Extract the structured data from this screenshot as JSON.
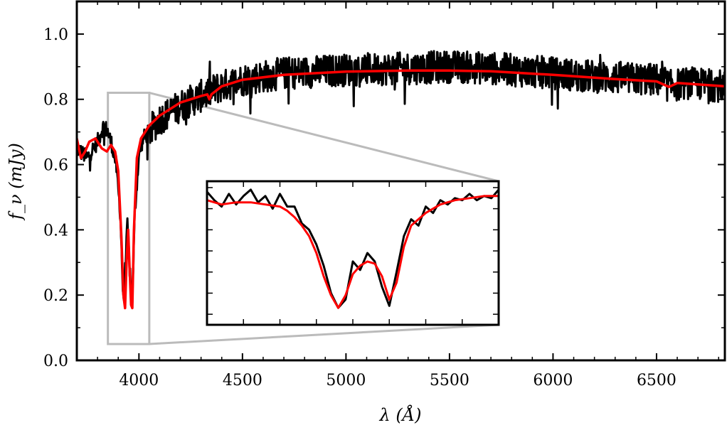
{
  "chart_data": {
    "type": "line",
    "xlabel": "λ (Å)",
    "ylabel": "f_ν (mJy)",
    "xlim": [
      3700,
      6830
    ],
    "ylim": [
      0.0,
      1.1
    ],
    "xticks": [
      4000,
      4500,
      5000,
      5500,
      6000,
      6500
    ],
    "xtick_labels": [
      "4000",
      "4500",
      "5000",
      "5500",
      "6000",
      "6500"
    ],
    "yticks": [
      0.0,
      0.2,
      0.4,
      0.6,
      0.8,
      1.0
    ],
    "ytick_labels": [
      "0.0",
      "0.2",
      "0.4",
      "0.6",
      "0.8",
      "1.0"
    ],
    "grid": false,
    "series": [
      {
        "color": "#000000",
        "style": "noisy observed spectrum",
        "x": [
          3700,
          3750,
          3800,
          3830,
          3850,
          3870,
          3890,
          3910,
          3925,
          3935,
          3945,
          3955,
          3968,
          3980,
          4000,
          4020,
          4050,
          4100,
          4200,
          4300,
          4400,
          4500,
          4700,
          5000,
          5300,
          5500,
          5700,
          6000,
          6300,
          6500,
          6563,
          6650,
          6830
        ],
        "y": [
          0.65,
          0.62,
          0.67,
          0.72,
          0.7,
          0.66,
          0.6,
          0.45,
          0.17,
          0.3,
          0.42,
          0.28,
          0.18,
          0.45,
          0.63,
          0.68,
          0.7,
          0.74,
          0.78,
          0.81,
          0.84,
          0.86,
          0.88,
          0.89,
          0.895,
          0.9,
          0.895,
          0.88,
          0.865,
          0.86,
          0.84,
          0.85,
          0.84
        ]
      },
      {
        "color": "#ff0000",
        "style": "model fit",
        "x": [
          3700,
          3720,
          3740,
          3760,
          3790,
          3820,
          3845,
          3865,
          3885,
          3900,
          3915,
          3925,
          3933,
          3940,
          3948,
          3955,
          3962,
          3968,
          3976,
          3990,
          4010,
          4050,
          4100,
          4200,
          4300,
          4330,
          4340,
          4350,
          4400,
          4500,
          4700,
          5000,
          5300,
          5500,
          5700,
          6000,
          6300,
          6500,
          6560,
          6600,
          6830
        ],
        "y": [
          0.68,
          0.62,
          0.64,
          0.67,
          0.68,
          0.65,
          0.64,
          0.66,
          0.64,
          0.58,
          0.38,
          0.2,
          0.16,
          0.3,
          0.4,
          0.28,
          0.17,
          0.16,
          0.4,
          0.62,
          0.68,
          0.72,
          0.75,
          0.79,
          0.81,
          0.815,
          0.8,
          0.815,
          0.84,
          0.86,
          0.875,
          0.885,
          0.888,
          0.888,
          0.886,
          0.875,
          0.862,
          0.855,
          0.838,
          0.85,
          0.84
        ]
      }
    ],
    "zoom_region": {
      "color": "#bbbbbb",
      "xlim": [
        3850,
        4050
      ],
      "ylim": [
        0.05,
        0.82
      ]
    },
    "inset": {
      "xlim": [
        3850,
        4050
      ],
      "ylim": [
        0.1,
        0.78
      ],
      "series": [
        {
          "color": "#000000",
          "x": [
            3850,
            3855,
            3860,
            3865,
            3870,
            3875,
            3880,
            3885,
            3890,
            3895,
            3900,
            3905,
            3910,
            3915,
            3920,
            3925,
            3930,
            3935,
            3940,
            3945,
            3950,
            3955,
            3960,
            3965,
            3970,
            3975,
            3980,
            3985,
            3990,
            3995,
            4000,
            4005,
            4010,
            4015,
            4020,
            4025,
            4030,
            4035,
            4040,
            4045,
            4050
          ],
          "y": [
            0.73,
            0.69,
            0.66,
            0.72,
            0.67,
            0.71,
            0.74,
            0.68,
            0.71,
            0.65,
            0.72,
            0.66,
            0.66,
            0.58,
            0.55,
            0.48,
            0.38,
            0.25,
            0.18,
            0.22,
            0.4,
            0.36,
            0.44,
            0.4,
            0.28,
            0.19,
            0.35,
            0.52,
            0.6,
            0.57,
            0.66,
            0.63,
            0.69,
            0.67,
            0.7,
            0.69,
            0.72,
            0.69,
            0.71,
            0.7,
            0.74
          ]
        },
        {
          "color": "#ff0000",
          "x": [
            3850,
            3855,
            3860,
            3870,
            3880,
            3890,
            3900,
            3905,
            3910,
            3915,
            3920,
            3925,
            3930,
            3935,
            3940,
            3945,
            3950,
            3955,
            3960,
            3965,
            3970,
            3975,
            3980,
            3985,
            3990,
            4000,
            4010,
            4020,
            4030,
            4040,
            4050
          ],
          "y": [
            0.69,
            0.68,
            0.67,
            0.68,
            0.68,
            0.67,
            0.66,
            0.64,
            0.61,
            0.57,
            0.52,
            0.44,
            0.33,
            0.24,
            0.18,
            0.24,
            0.34,
            0.38,
            0.4,
            0.39,
            0.33,
            0.22,
            0.3,
            0.47,
            0.57,
            0.63,
            0.67,
            0.69,
            0.7,
            0.71,
            0.71
          ]
        }
      ]
    }
  }
}
